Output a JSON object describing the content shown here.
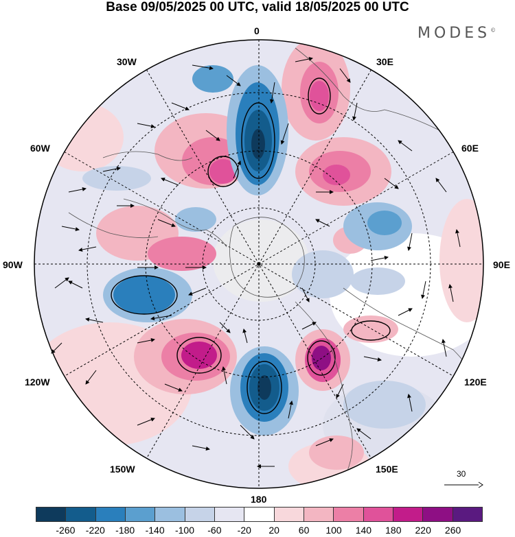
{
  "title": "Base 09/05/2025 00 UTC, valid 18/05/2025 00 UTC",
  "brand": "MODES",
  "brand_mark": "©",
  "lon_labels": {
    "top": "0",
    "e30": "30E",
    "e60": "60E",
    "e90": "90E",
    "e120": "120E",
    "e150": "150E",
    "bottom": "180",
    "w150": "150W",
    "w120": "120W",
    "w90": "90W",
    "w60": "60W",
    "w30": "30W"
  },
  "reference_vector": {
    "value": "30"
  },
  "colorbar": {
    "colors": [
      "#0e3a5c",
      "#135c8c",
      "#2a7fbc",
      "#5b9fcf",
      "#9bbfe0",
      "#c6d3e8",
      "#e6e6f2",
      "#ffffff",
      "#f8d8dc",
      "#f3b6c2",
      "#ec7fa6",
      "#e0529a",
      "#c21c8a",
      "#8e0f84",
      "#5a1a80"
    ],
    "labels": [
      "-260",
      "-220",
      "-180",
      "-140",
      "-100",
      "-60",
      "-20",
      "20",
      "60",
      "100",
      "140",
      "180",
      "220",
      "260"
    ]
  }
}
